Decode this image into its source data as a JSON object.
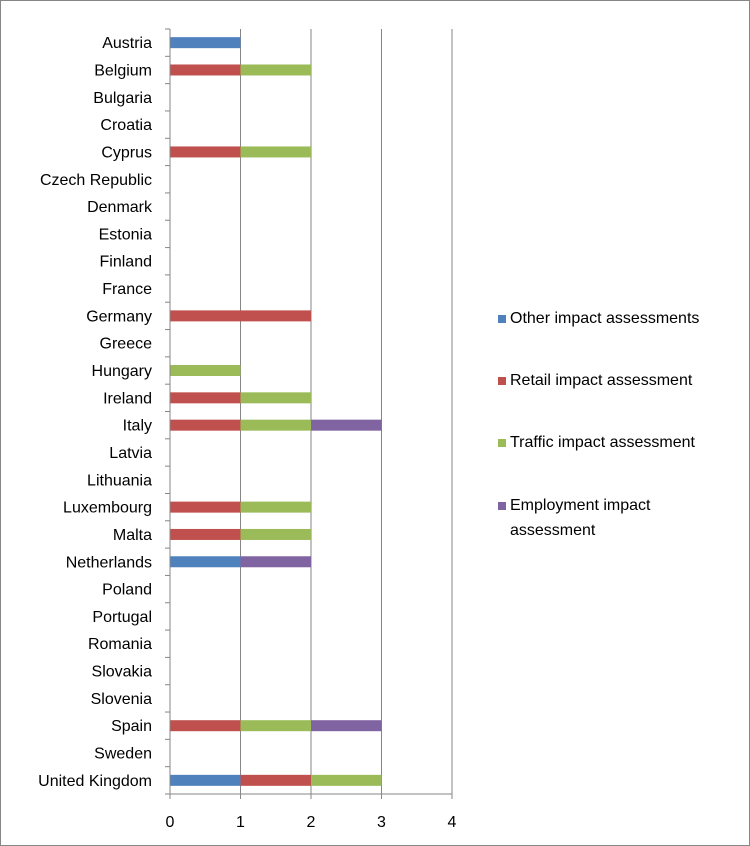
{
  "chart_data": {
    "type": "bar",
    "orientation": "horizontal",
    "stacked": true,
    "categories": [
      "Austria",
      "Belgium",
      "Bulgaria",
      "Croatia",
      "Cyprus",
      "Czech Republic",
      "Denmark",
      "Estonia",
      "Finland",
      "France",
      "Germany",
      "Greece",
      "Hungary",
      "Ireland",
      "Italy",
      "Latvia",
      "Lithuania",
      "Luxembourg",
      "Malta",
      "Netherlands",
      "Poland",
      "Portugal",
      "Romania",
      "Slovakia",
      "Slovenia",
      "Spain",
      "Sweden",
      "United Kingdom"
    ],
    "series": [
      {
        "name": "Other impact assessments",
        "color": "#4f81bd",
        "values": [
          1,
          0,
          0,
          0,
          0,
          0,
          0,
          0,
          0,
          0,
          0,
          0,
          0,
          0,
          0,
          0,
          0,
          0,
          0,
          1,
          0,
          0,
          0,
          0,
          0,
          0,
          0,
          1
        ]
      },
      {
        "name": "Retail impact assessment",
        "color": "#c0504d",
        "values": [
          0,
          1,
          0,
          0,
          1,
          0,
          0,
          0,
          0,
          0,
          2,
          0,
          0,
          1,
          1,
          0,
          0,
          1,
          1,
          0,
          0,
          0,
          0,
          0,
          0,
          1,
          0,
          1
        ]
      },
      {
        "name": "Traffic impact assessment",
        "color": "#9bbb59",
        "values": [
          0,
          1,
          0,
          0,
          1,
          0,
          0,
          0,
          0,
          0,
          0,
          0,
          1,
          1,
          1,
          0,
          0,
          1,
          1,
          0,
          0,
          0,
          0,
          0,
          0,
          1,
          0,
          1
        ]
      },
      {
        "name": "Employment impact assessment",
        "color": "#8064a2",
        "values": [
          0,
          0,
          0,
          0,
          0,
          0,
          0,
          0,
          0,
          0,
          0,
          0,
          0,
          0,
          1,
          0,
          0,
          0,
          0,
          1,
          0,
          0,
          0,
          0,
          0,
          1,
          0,
          0
        ]
      }
    ],
    "xlim": [
      0,
      4
    ],
    "xticks": [
      "0",
      "1",
      "2",
      "3",
      "4"
    ],
    "grid": "vertical",
    "legend": "right",
    "title": "",
    "xlabel": "",
    "ylabel": ""
  }
}
